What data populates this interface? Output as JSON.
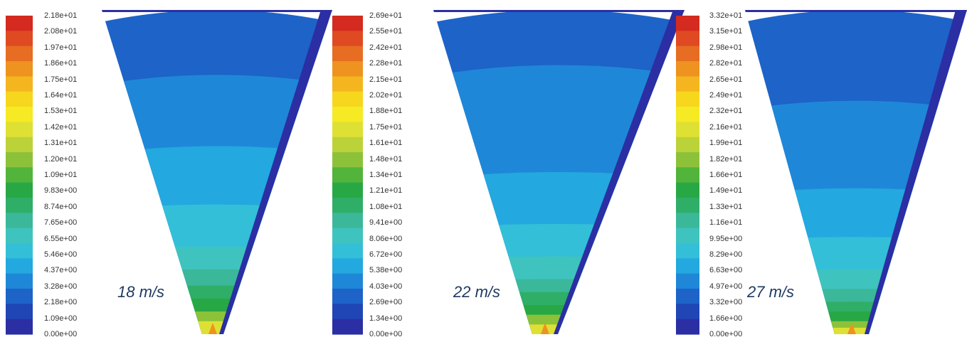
{
  "colormap": [
    "#2b2fa3",
    "#2046b5",
    "#1d63c8",
    "#1f87d8",
    "#23a8df",
    "#33bfd8",
    "#3fc3bf",
    "#3bb89a",
    "#2fae68",
    "#28a844",
    "#52b43a",
    "#8cc23a",
    "#bcd239",
    "#dfe034",
    "#f5ea23",
    "#f7d61e",
    "#f4b51f",
    "#ee9220",
    "#e66d22",
    "#df4a23",
    "#d42a20"
  ],
  "chart_data": [
    {
      "type": "heatmap",
      "title": "18 m/s",
      "scale": "linear",
      "legend_ticks": [
        "2.18e+01",
        "2.08e+01",
        "1.97e+01",
        "1.86e+01",
        "1.75e+01",
        "1.64e+01",
        "1.53e+01",
        "1.42e+01",
        "1.31e+01",
        "1.20e+01",
        "1.09e+01",
        "9.83e+00",
        "8.74e+00",
        "7.65e+00",
        "6.55e+00",
        "5.46e+00",
        "4.37e+00",
        "3.28e+00",
        "2.18e+00",
        "1.09e+00",
        "0.00e+00"
      ],
      "bands": [
        {
          "depth": 0.0,
          "level": 2
        },
        {
          "depth": 0.2,
          "level": 3
        },
        {
          "depth": 0.42,
          "level": 4
        },
        {
          "depth": 0.6,
          "level": 5
        },
        {
          "depth": 0.73,
          "level": 6
        },
        {
          "depth": 0.8,
          "level": 7
        },
        {
          "depth": 0.85,
          "level": 8
        },
        {
          "depth": 0.89,
          "level": 9
        },
        {
          "depth": 0.93,
          "level": 11
        },
        {
          "depth": 0.96,
          "level": 13
        }
      ]
    },
    {
      "type": "heatmap",
      "title": "22 m/s",
      "scale": "linear",
      "legend_ticks": [
        "2.69e+01",
        "2.55e+01",
        "2.42e+01",
        "2.28e+01",
        "2.15e+01",
        "2.02e+01",
        "1.88e+01",
        "1.75e+01",
        "1.61e+01",
        "1.48e+01",
        "1.34e+01",
        "1.21e+01",
        "1.08e+01",
        "9.41e+00",
        "8.06e+00",
        "6.72e+00",
        "5.38e+00",
        "4.03e+00",
        "2.69e+00",
        "1.34e+00",
        "0.00e+00"
      ],
      "bands": [
        {
          "depth": 0.0,
          "level": 2
        },
        {
          "depth": 0.17,
          "level": 3
        },
        {
          "depth": 0.5,
          "level": 4
        },
        {
          "depth": 0.66,
          "level": 5
        },
        {
          "depth": 0.76,
          "level": 6
        },
        {
          "depth": 0.83,
          "level": 7
        },
        {
          "depth": 0.87,
          "level": 8
        },
        {
          "depth": 0.91,
          "level": 9
        },
        {
          "depth": 0.94,
          "level": 11
        },
        {
          "depth": 0.97,
          "level": 13
        }
      ]
    },
    {
      "type": "heatmap",
      "title": "27 m/s",
      "scale": "linear",
      "legend_ticks": [
        "3.32e+01",
        "3.15e+01",
        "2.98e+01",
        "2.82e+01",
        "2.65e+01",
        "2.49e+01",
        "2.32e+01",
        "2.16e+01",
        "1.99e+01",
        "1.82e+01",
        "1.66e+01",
        "1.49e+01",
        "1.33e+01",
        "1.16e+01",
        "9.95e+00",
        "8.29e+00",
        "6.63e+00",
        "4.97e+00",
        "3.32e+00",
        "1.66e+00",
        "0.00e+00"
      ],
      "bands": [
        {
          "depth": 0.0,
          "level": 2
        },
        {
          "depth": 0.28,
          "level": 3
        },
        {
          "depth": 0.55,
          "level": 4
        },
        {
          "depth": 0.7,
          "level": 5
        },
        {
          "depth": 0.8,
          "level": 6
        },
        {
          "depth": 0.86,
          "level": 7
        },
        {
          "depth": 0.9,
          "level": 8
        },
        {
          "depth": 0.93,
          "level": 9
        },
        {
          "depth": 0.96,
          "level": 11
        },
        {
          "depth": 0.98,
          "level": 13
        }
      ]
    }
  ]
}
